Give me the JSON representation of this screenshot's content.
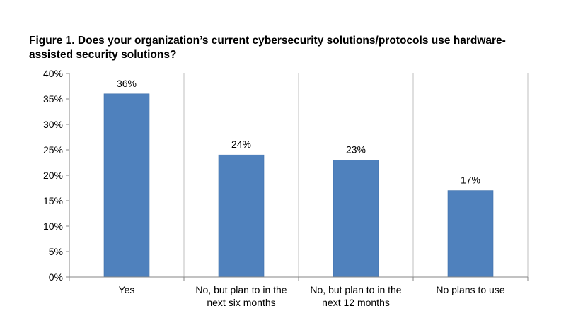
{
  "chart_data": {
    "type": "bar",
    "title": "Figure 1. Does your organization’s current cybersecurity solutions/protocols use hardware-assisted security solutions?",
    "categories": [
      [
        "Yes"
      ],
      [
        "No, but plan to in the",
        "next six months"
      ],
      [
        "No, but plan to in the",
        "next 12 months"
      ],
      [
        "No plans to use"
      ]
    ],
    "values": [
      36,
      24,
      23,
      17
    ],
    "data_labels": [
      "36%",
      "24%",
      "23%",
      "17%"
    ],
    "ylim": [
      0,
      40
    ],
    "yticks": [
      0,
      5,
      10,
      15,
      20,
      25,
      30,
      35,
      40
    ],
    "ytick_labels": [
      "0%",
      "5%",
      "10%",
      "15%",
      "20%",
      "25%",
      "30%",
      "35%",
      "40%"
    ],
    "xlabel": "",
    "ylabel": "",
    "bar_color": "#4F81BD",
    "grid": "vertical separators"
  }
}
